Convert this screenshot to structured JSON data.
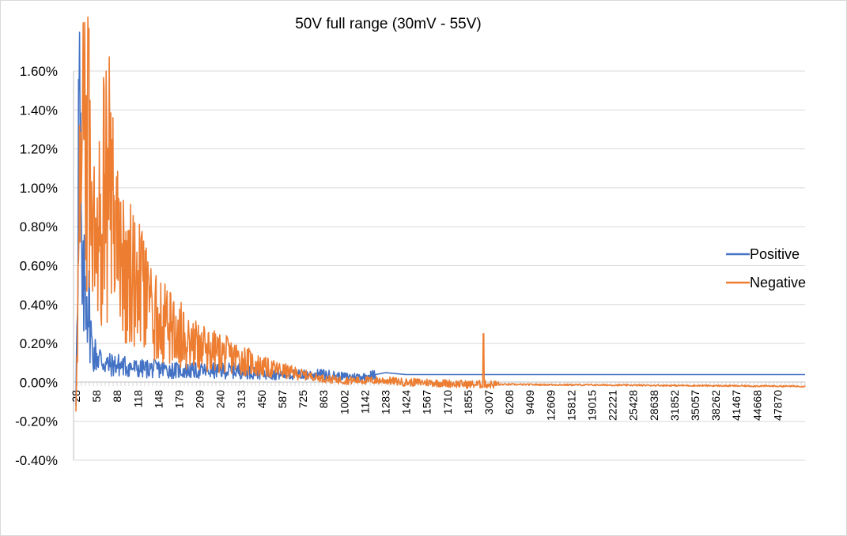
{
  "chart_data": {
    "type": "line",
    "title": "50V full range (30mV - 55V)",
    "xlabel": "",
    "ylabel": "",
    "x_tick_labels": [
      "28",
      "58",
      "88",
      "118",
      "148",
      "179",
      "209",
      "240",
      "313",
      "450",
      "587",
      "725",
      "863",
      "1002",
      "1142",
      "1283",
      "1424",
      "1567",
      "1710",
      "1855",
      "3007",
      "6208",
      "9409",
      "12609",
      "15812",
      "19015",
      "22221",
      "25428",
      "28638",
      "31852",
      "35057",
      "38262",
      "41467",
      "44668",
      "47870"
    ],
    "y_tick_labels": [
      "-0.40%",
      "-0.20%",
      "0.00%",
      "0.20%",
      "0.40%",
      "0.60%",
      "0.80%",
      "1.00%",
      "1.20%",
      "1.40%",
      "1.60%"
    ],
    "ylim": [
      -0.004,
      0.016
    ],
    "grid": true,
    "legend_position": "right",
    "series": [
      {
        "name": "Positive",
        "color": "#4472C4",
        "anchors_by_tick": [
          [
            0,
            -0.0012
          ],
          [
            0.15,
            0.0148
          ],
          [
            0.3,
            0.004
          ],
          [
            0.5,
            0.0055
          ],
          [
            0.8,
            0.0015
          ],
          [
            1,
            0.0014
          ],
          [
            1.5,
            0.0009
          ],
          [
            2,
            0.0009
          ],
          [
            3,
            0.0007
          ],
          [
            4,
            0.0007
          ],
          [
            5,
            0.0006
          ],
          [
            6,
            0.0006
          ],
          [
            7,
            0.0006
          ],
          [
            8,
            0.0006
          ],
          [
            9,
            0.0005
          ],
          [
            10,
            0.0004
          ],
          [
            11,
            0.0004
          ],
          [
            12,
            0.0004
          ],
          [
            13,
            0.0003
          ],
          [
            14,
            0.0003
          ],
          [
            15,
            0.0005
          ],
          [
            16,
            0.0004
          ],
          [
            17,
            0.0004
          ],
          [
            34,
            0.0004
          ],
          [
            35,
            0.0004
          ]
        ],
        "spikes": []
      },
      {
        "name": "Negative",
        "color": "#ED7D31",
        "anchors_by_tick": [
          [
            0,
            -0.0015
          ],
          [
            0.2,
            0.0098
          ],
          [
            0.5,
            0.0125
          ],
          [
            1,
            0.0095
          ],
          [
            1.7,
            0.0102
          ],
          [
            2,
            0.0072
          ],
          [
            2.5,
            0.0055
          ],
          [
            3,
            0.0052
          ],
          [
            3.5,
            0.0038
          ],
          [
            4,
            0.0032
          ],
          [
            5,
            0.0025
          ],
          [
            6,
            0.0018
          ],
          [
            7,
            0.0015
          ],
          [
            8,
            0.0012
          ],
          [
            9,
            0.0008
          ],
          [
            10,
            0.0006
          ],
          [
            11,
            0.0004
          ],
          [
            12,
            0.0002
          ],
          [
            13,
            0.0001
          ],
          [
            14,
            0.0001
          ],
          [
            15,
            0.0001
          ],
          [
            16,
            0.0
          ],
          [
            17,
            0.0
          ],
          [
            19,
            -0.0001
          ],
          [
            20,
            -0.0001
          ],
          [
            35,
            -0.0002
          ]
        ],
        "spikes": [
          [
            19.75,
            0.0025
          ]
        ]
      }
    ]
  }
}
